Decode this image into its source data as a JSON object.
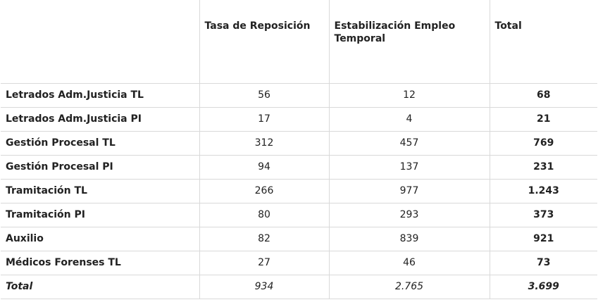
{
  "table": {
    "headers": [
      "",
      "Tasa de Reposición",
      "Estabilización Empleo Temporal",
      "Total"
    ],
    "rows": [
      {
        "label": "Letrados Adm.Justicia TL",
        "tasa": "56",
        "estab": "12",
        "total": "68"
      },
      {
        "label": "Letrados Adm.Justicia PI",
        "tasa": "17",
        "estab": "4",
        "total": "21"
      },
      {
        "label": "Gestión Procesal TL",
        "tasa": "312",
        "estab": "457",
        "total": "769"
      },
      {
        "label": "Gestión Procesal PI",
        "tasa": "94",
        "estab": "137",
        "total": "231"
      },
      {
        "label": "Tramitación TL",
        "tasa": "266",
        "estab": "977",
        "total": "1.243"
      },
      {
        "label": "Tramitación PI",
        "tasa": "80",
        "estab": "293",
        "total": "373"
      },
      {
        "label": "Auxilio",
        "tasa": "82",
        "estab": "839",
        "total": "921"
      },
      {
        "label": "Médicos Forenses TL",
        "tasa": "27",
        "estab": "46",
        "total": "73"
      }
    ],
    "total_row": {
      "label": "Total",
      "tasa": "934",
      "estab": "2.765",
      "total": "3.699"
    }
  }
}
